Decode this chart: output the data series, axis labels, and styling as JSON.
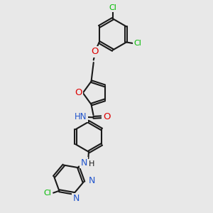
{
  "bg_color": "#e8e8e8",
  "bond_color": "#1a1a1a",
  "cl_color": "#00bb00",
  "o_color": "#dd0000",
  "n_color": "#2255cc",
  "lw": 1.5,
  "fs": 8.5,
  "xlim": [
    0,
    10
  ],
  "ylim": [
    0,
    10
  ]
}
